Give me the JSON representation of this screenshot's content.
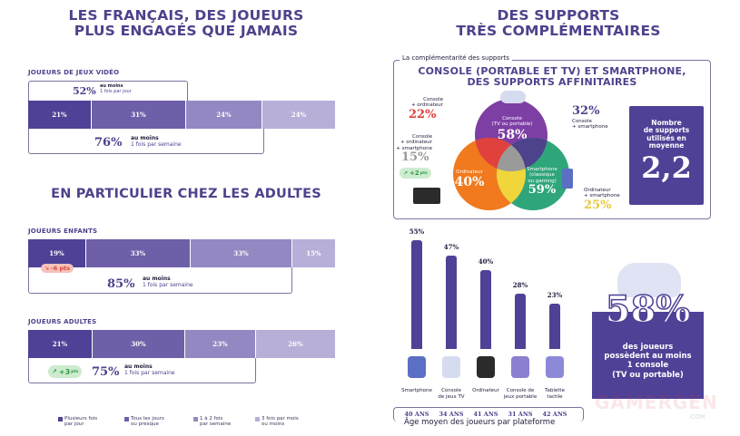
{
  "left": {
    "title_line1": "LES FRANÇAIS, DES JOUEURS",
    "title_line2": "PLUS ENGAGÉS QUE JAMAIS",
    "all_players": {
      "label": "JOUEURS DE JEUX VIDÉO",
      "segments": [
        "21%",
        "31%",
        "24%",
        "24%"
      ],
      "daily_pct": "52%",
      "daily_line1": "au moins",
      "daily_line2": "1 fois par jour",
      "weekly_pct": "76%",
      "weekly_line1": "au moins",
      "weekly_line2": "1 fois par semaine"
    },
    "subtitle": "EN PARTICULIER CHEZ LES ADULTES",
    "children": {
      "label": "JOUEURS ENFANTS",
      "segments": [
        "19%",
        "33%",
        "33%",
        "15%"
      ],
      "badge": "-6 pts",
      "badge_sub": "VS 2024",
      "weekly_pct": "85%",
      "weekly_line1": "au moins",
      "weekly_line2": "1 fois par semaine"
    },
    "adults": {
      "label": "JOUEURS ADULTES",
      "segments": [
        "21%",
        "30%",
        "23%",
        "26%"
      ],
      "badge": "+3",
      "badge_unit": "pts",
      "badge_sub": "VS 2024",
      "weekly_pct": "75%",
      "weekly_line1": "au moins",
      "weekly_line2": "1 fois par semaine"
    },
    "legend": [
      {
        "line1": "Plusieurs fois",
        "line2": "par jour",
        "color": "#4f4196"
      },
      {
        "line1": "Tous les jours",
        "line2": "ou presque",
        "color": "#6e5fa8"
      },
      {
        "line1": "1 à 2 fois",
        "line2": "par semaine",
        "color": "#9488c2"
      },
      {
        "line1": "3 fois par mois",
        "line2": "ou moins",
        "color": "#b7afd8"
      }
    ]
  },
  "right": {
    "title_line1": "DES SUPPORTS",
    "title_line2": "TRÈS COMPLÉMENTAIRES",
    "venn_box": {
      "legend": "La complémentarité des supports",
      "heading_line1": "CONSOLE (PORTABLE ET TV) ET SMARTPHONE,",
      "heading_line2": "DES SUPPORTS AFFINITAIRES",
      "console": {
        "l1": "Console",
        "l2": "(TV ou portable)",
        "pct": "58%",
        "color": "#7e3fa5"
      },
      "computer": {
        "l1": "Ordinateur",
        "pct": "40%",
        "color": "#f07a1d"
      },
      "smartphone": {
        "l1": "Smartphone",
        "l2": "(classique",
        "l3": "ou gaming)",
        "pct": "59%",
        "color": "#2fa57a"
      },
      "console_computer": {
        "l1": "Console",
        "l2": "+ ordinateur",
        "pct": "22%",
        "color": "#e0413c"
      },
      "console_smartphone": {
        "l1": "Console",
        "l2": "+ smartphone",
        "pct": "32%",
        "color": "#4d428c"
      },
      "all_three": {
        "l1": "Console",
        "l2": "+ ordinateur",
        "l3": "+ smartphone",
        "pct": "15%",
        "color": "#9a9a9a",
        "badge": "+2",
        "badge_unit": "pts",
        "badge_sub": "VS 2024"
      },
      "computer_smartphone": {
        "l1": "Ordinateur",
        "l2": "+ smartphone",
        "pct": "25%",
        "color": "#f0d63a"
      }
    },
    "avg_box": {
      "l1": "Nombre",
      "l2": "de supports",
      "l3": "utilisés en",
      "l4": "moyenne",
      "value": "2,2"
    },
    "platforms": {
      "items": [
        {
          "name_l1": "Smartphone",
          "name_l2": "",
          "pct_label": "55%",
          "value": 55,
          "age": "40 ANS"
        },
        {
          "name_l1": "Console",
          "name_l2": "de jeux TV",
          "pct_label": "47%",
          "value": 47,
          "age": "34 ANS"
        },
        {
          "name_l1": "Ordinateur",
          "name_l2": "",
          "pct_label": "40%",
          "value": 40,
          "age": "41 ANS"
        },
        {
          "name_l1": "Console de",
          "name_l2": "jeux portable",
          "pct_label": "28%",
          "value": 28,
          "age": "31 ANS"
        },
        {
          "name_l1": "Tablette",
          "name_l2": "tactile",
          "pct_label": "23%",
          "value": 23,
          "age": "42 ANS"
        }
      ],
      "age_caption": "Âge moyen des joueurs par plateforme"
    },
    "console_owners": {
      "pct": "58%",
      "l1": "des joueurs",
      "l2": "possèdent au moins",
      "l3": "1 console",
      "l4": "(TV ou portable)"
    },
    "watermark": {
      "brand": "GAMERGEN",
      "tld": ".COM"
    }
  }
}
